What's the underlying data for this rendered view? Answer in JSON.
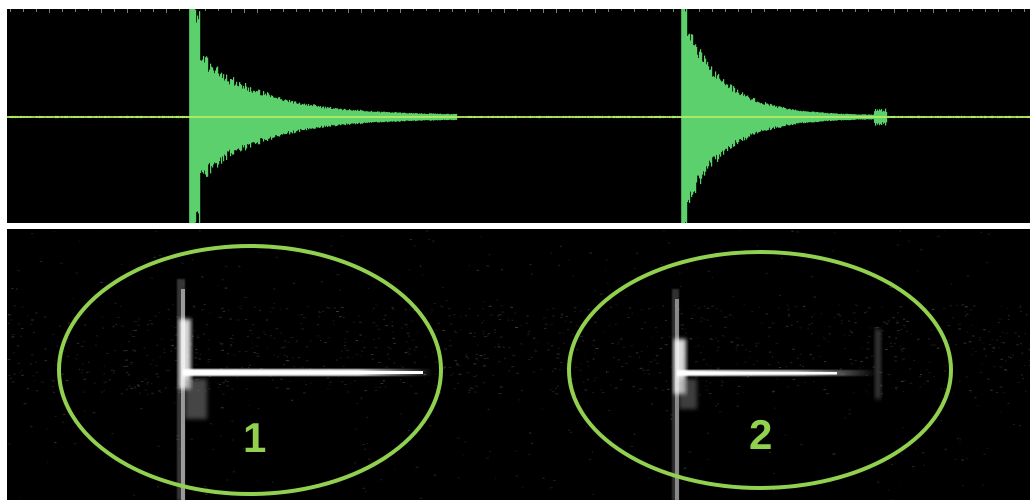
{
  "colors": {
    "background": "#000000",
    "waveform": "#5cd06c",
    "zero_line": "#c8f060",
    "spectral_energy": "#ffffff",
    "annotation": "#92d050",
    "divider": "#ffffff"
  },
  "waveform": {
    "events": [
      {
        "id": 1,
        "onset_fraction": 0.18,
        "decay_end_fraction": 0.4
      },
      {
        "id": 2,
        "onset_fraction": 0.66,
        "decay_end_fraction": 0.82
      }
    ]
  },
  "spectrogram": {
    "highlighted_regions": [
      {
        "label": "1"
      },
      {
        "label": "2"
      }
    ]
  }
}
